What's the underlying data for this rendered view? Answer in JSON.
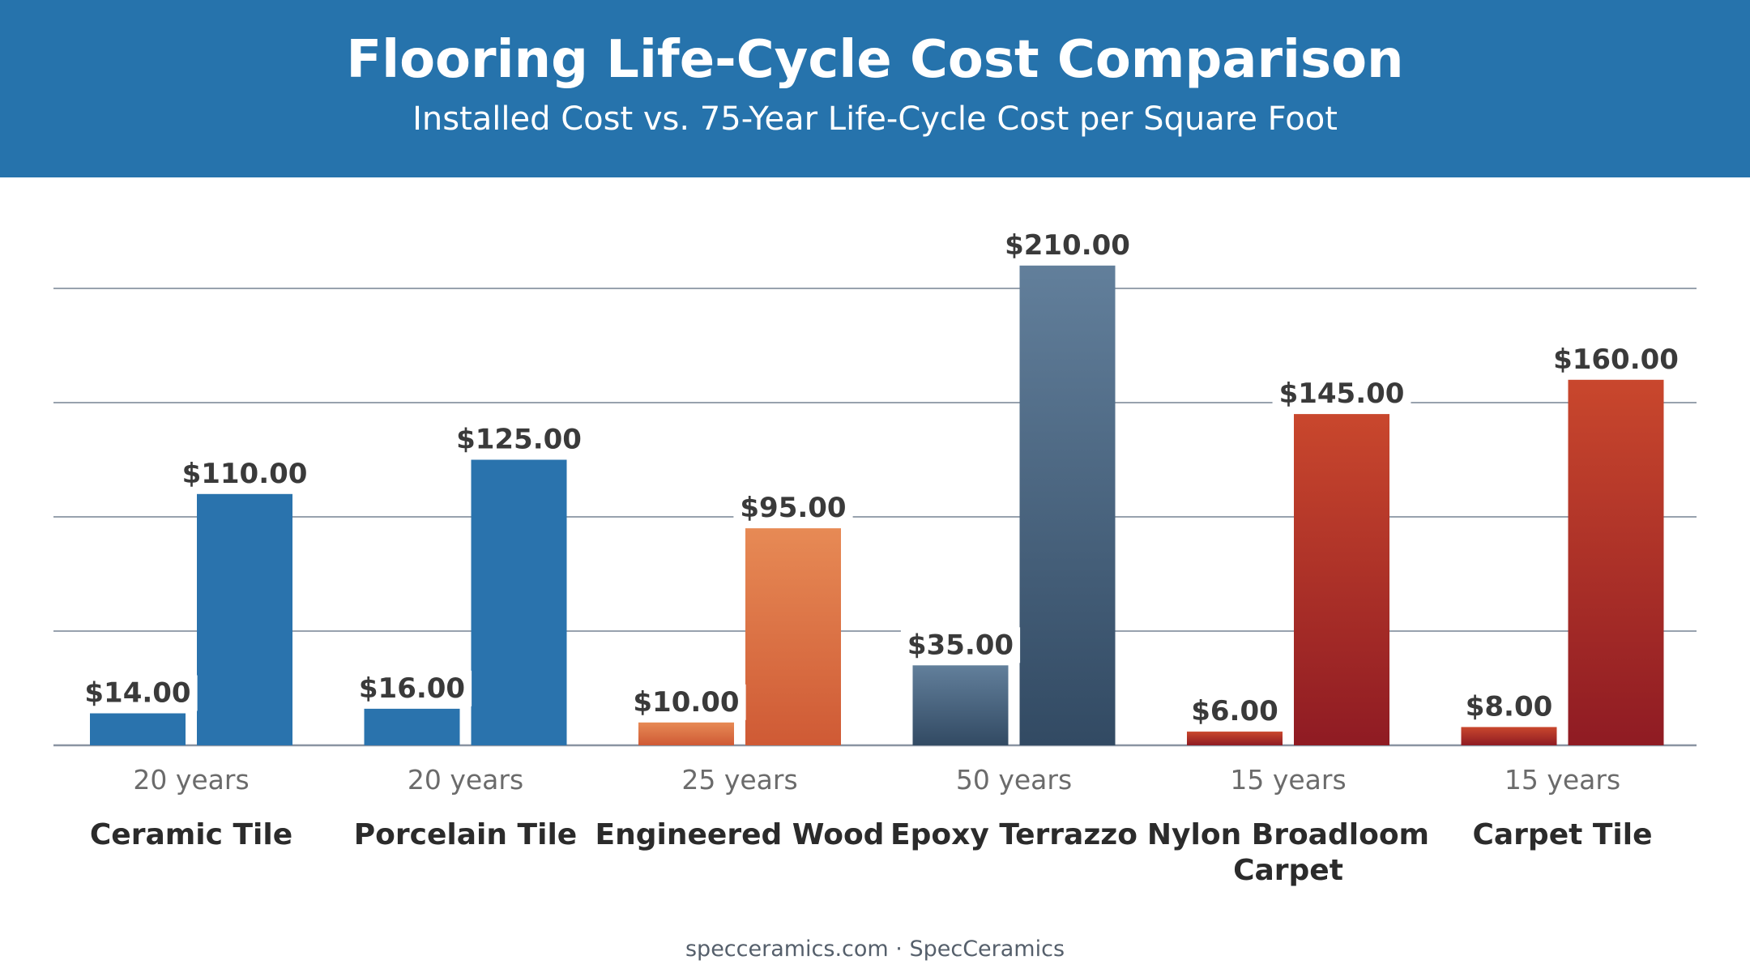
{
  "header": {
    "title": "Flooring Life-Cycle Cost Comparison",
    "subtitle": "Installed Cost vs. 75-Year Life-Cycle Cost per Square Foot"
  },
  "chart_data": {
    "type": "bar",
    "title": "Flooring Life-Cycle Cost Comparison",
    "subtitle": "Installed Cost vs. 75-Year Life-Cycle Cost per Square Foot",
    "xlabel": "",
    "ylabel": "",
    "ylim": [
      0,
      210
    ],
    "grid": true,
    "categories": [
      "Ceramic Tile",
      "Porcelain Tile",
      "Engineered Wood",
      "Epoxy Terrazzo",
      "Nylon Broadloom Carpet",
      "Carpet Tile"
    ],
    "lifespans": [
      "20 years",
      "20 years",
      "25 years",
      "50 years",
      "15 years",
      "15 years"
    ],
    "series": [
      {
        "values": [
          14,
          16,
          10,
          35,
          6,
          8
        ],
        "labels": [
          "$14.00",
          "$16.00",
          "$10.00",
          "$35.00",
          "$6.00",
          "$8.00"
        ]
      },
      {
        "values": [
          110,
          125,
          95,
          210,
          145,
          160
        ],
        "labels": [
          "$110.00",
          "$125.00",
          "$95.00",
          "$210.00",
          "$145.00",
          "$160.00"
        ]
      }
    ],
    "category_colors": [
      [
        "#2a73ad",
        "#2a73ad"
      ],
      [
        "#2a73ad",
        "#2a73ad"
      ],
      [
        "#e78a55",
        "#cf5a35"
      ],
      [
        "#627f9b",
        "#324a63"
      ],
      [
        "#c9472d",
        "#8f1b23"
      ],
      [
        "#c9472d",
        "#8f1b23"
      ]
    ]
  },
  "footer": {
    "source": "specceramics.com · SpecCeramics"
  },
  "colors": {
    "header_bg": "#2673ac",
    "gridline": "#8a94a2",
    "label_text": "#3a3a3a",
    "lifespan_text": "#6b6b6b"
  }
}
